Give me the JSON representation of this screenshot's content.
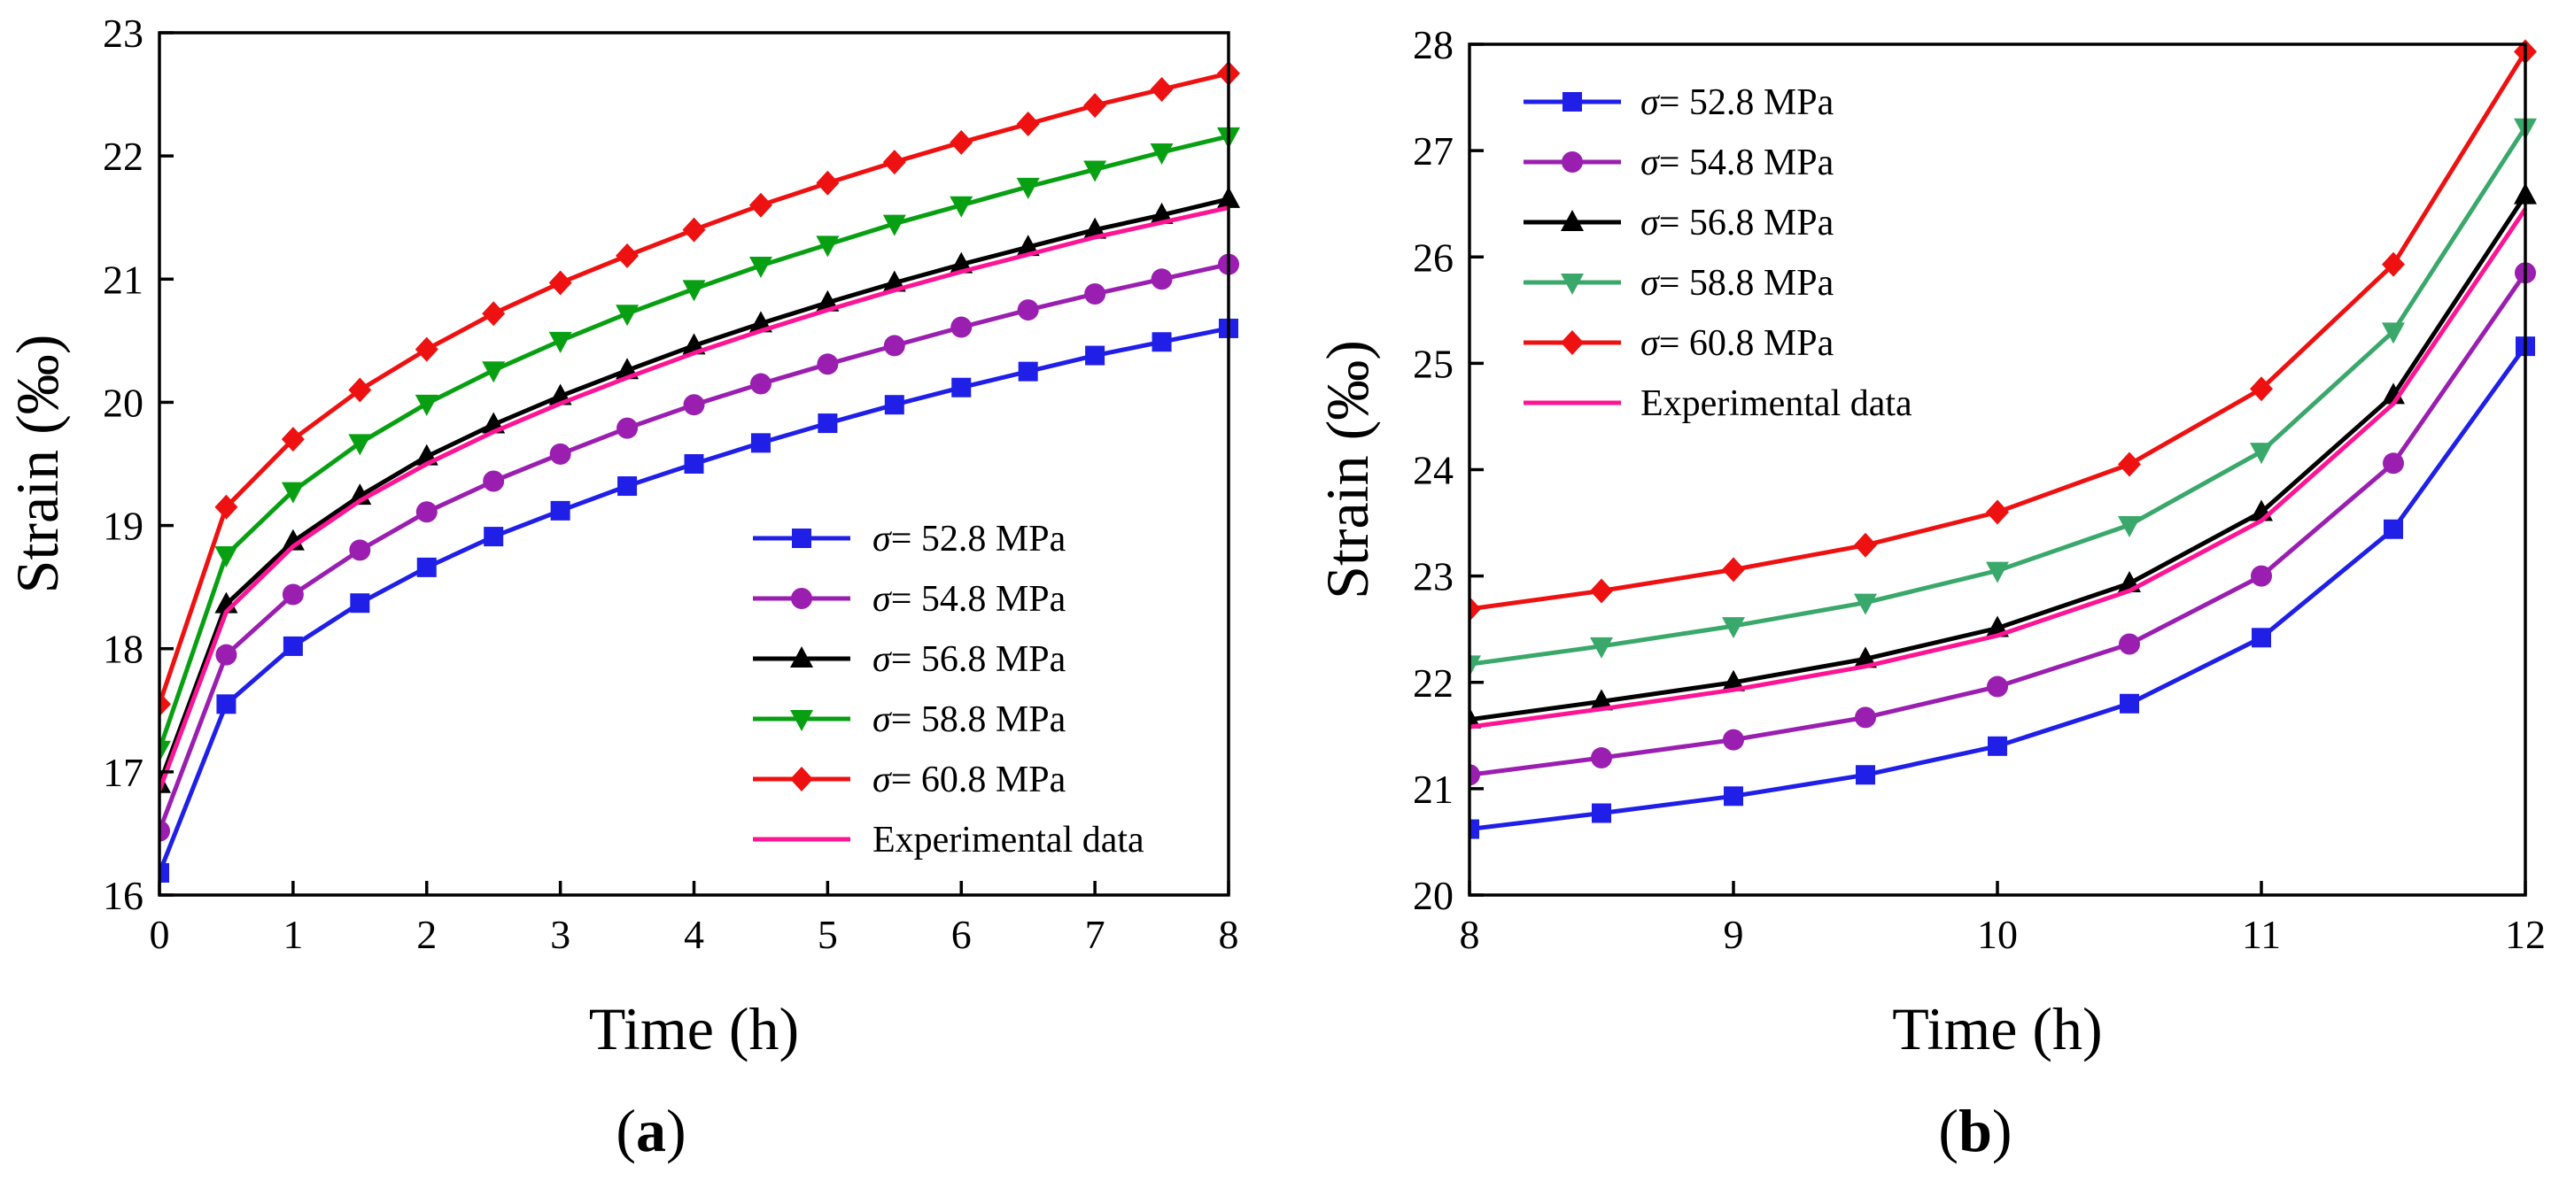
{
  "chart_data": [
    {
      "type": "line",
      "panel_label": "a",
      "xlabel": "Time (h)",
      "ylabel": "Strain (‰)",
      "xlim": [
        0,
        8
      ],
      "ylim": [
        16,
        23
      ],
      "xticks": [
        0,
        1,
        2,
        3,
        4,
        5,
        6,
        7,
        8
      ],
      "yticks": [
        16,
        17,
        18,
        19,
        20,
        21,
        22,
        23
      ],
      "legend_position": "lower-right",
      "x": [
        0,
        0.5,
        1,
        1.5,
        2,
        2.5,
        3,
        3.5,
        4,
        4.5,
        5,
        5.5,
        6,
        6.5,
        7,
        7.5,
        8
      ],
      "series": [
        {
          "name": "= 52.8 MPa",
          "symbol": "σ",
          "color": "#1f1fe8",
          "marker": "square",
          "values": [
            16.18,
            17.55,
            18.02,
            18.37,
            18.66,
            18.91,
            19.12,
            19.32,
            19.5,
            19.67,
            19.83,
            19.98,
            20.12,
            20.25,
            20.38,
            20.49,
            20.6
          ]
        },
        {
          "name": "= 54.8 MPa",
          "symbol": "σ",
          "color": "#9a1fb0",
          "marker": "circle",
          "values": [
            16.52,
            17.95,
            18.44,
            18.8,
            19.11,
            19.36,
            19.58,
            19.79,
            19.98,
            20.15,
            20.31,
            20.46,
            20.61,
            20.75,
            20.88,
            21.0,
            21.12
          ]
        },
        {
          "name": "= 56.8 MPa",
          "symbol": "σ",
          "color": "#000000",
          "marker": "triangle-up",
          "values": [
            16.9,
            18.36,
            18.87,
            19.24,
            19.56,
            19.82,
            20.05,
            20.26,
            20.46,
            20.64,
            20.81,
            20.97,
            21.12,
            21.26,
            21.4,
            21.52,
            21.65
          ]
        },
        {
          "name": "= 58.8 MPa",
          "symbol": "σ",
          "color": "#08a012",
          "marker": "triangle-down",
          "values": [
            17.18,
            18.76,
            19.28,
            19.67,
            19.99,
            20.26,
            20.5,
            20.72,
            20.92,
            21.11,
            21.28,
            21.45,
            21.6,
            21.75,
            21.89,
            22.03,
            22.16
          ]
        },
        {
          "name": "= 60.8 MPa",
          "symbol": "σ",
          "color": "#ee1111",
          "marker": "diamond",
          "values": [
            17.55,
            19.15,
            19.7,
            20.1,
            20.43,
            20.72,
            20.97,
            21.19,
            21.4,
            21.6,
            21.78,
            21.95,
            22.11,
            22.26,
            22.41,
            22.54,
            22.67
          ]
        },
        {
          "name": "Experimental data",
          "color": "#ff1493",
          "marker": "none",
          "values": [
            16.85,
            18.3,
            18.83,
            19.2,
            19.5,
            19.76,
            19.99,
            20.2,
            20.4,
            20.58,
            20.75,
            20.91,
            21.06,
            21.2,
            21.34,
            21.46,
            21.58
          ]
        }
      ]
    },
    {
      "type": "line",
      "panel_label": "b",
      "xlabel": "Time (h)",
      "ylabel": "Strain (‰)",
      "xlim": [
        8,
        12
      ],
      "ylim": [
        20,
        28
      ],
      "xticks": [
        8,
        9,
        10,
        11,
        12
      ],
      "yticks": [
        20,
        21,
        22,
        23,
        24,
        25,
        26,
        27,
        28
      ],
      "legend_position": "upper-left",
      "x": [
        8,
        8.5,
        9,
        9.5,
        10,
        10.5,
        11,
        11.5,
        12
      ],
      "series": [
        {
          "name": "= 52.8 MPa",
          "symbol": "σ",
          "color": "#1f1fe8",
          "marker": "square",
          "values": [
            20.62,
            20.77,
            20.93,
            21.13,
            21.4,
            21.8,
            22.42,
            23.44,
            25.16
          ]
        },
        {
          "name": "= 54.8 MPa",
          "symbol": "σ",
          "color": "#9a1fb0",
          "marker": "circle",
          "values": [
            21.13,
            21.29,
            21.46,
            21.67,
            21.96,
            22.36,
            23.0,
            24.06,
            25.85
          ]
        },
        {
          "name": "= 56.8 MPa",
          "symbol": "σ",
          "color": "#000000",
          "marker": "triangle-up",
          "values": [
            21.65,
            21.82,
            22.0,
            22.22,
            22.51,
            22.93,
            23.6,
            24.7,
            26.58
          ]
        },
        {
          "name": "= 58.8 MPa",
          "symbol": "σ",
          "color": "#3aa86b",
          "marker": "triangle-down",
          "values": [
            22.17,
            22.34,
            22.53,
            22.75,
            23.05,
            23.48,
            24.17,
            25.3,
            27.22
          ]
        },
        {
          "name": "= 60.8 MPa",
          "symbol": "σ",
          "color": "#ee1111",
          "marker": "diamond",
          "values": [
            22.69,
            22.86,
            23.06,
            23.29,
            23.6,
            24.05,
            24.76,
            25.93,
            27.93
          ]
        },
        {
          "name": "Experimental data",
          "color": "#ff1493",
          "marker": "none",
          "values": [
            21.58,
            21.75,
            21.93,
            22.15,
            22.44,
            22.86,
            23.52,
            24.62,
            26.45
          ]
        }
      ]
    }
  ]
}
